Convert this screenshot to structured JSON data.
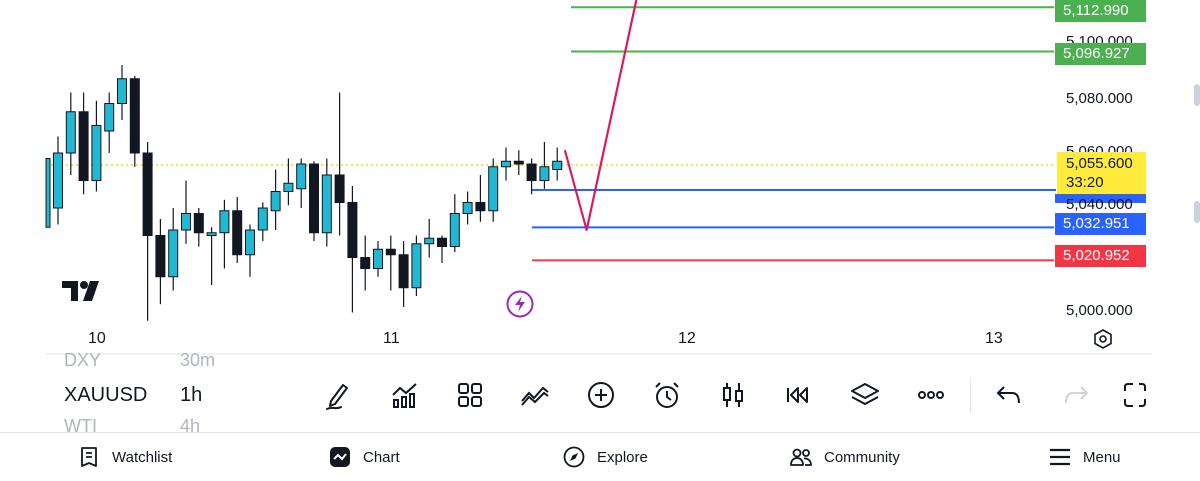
{
  "price_axis": {
    "ticks": [
      "5,100.000",
      "5,080.000",
      "5,060.000",
      "5,040.000",
      "5,000.000"
    ]
  },
  "price_levels": [
    {
      "label": "5,112.990",
      "color": "#4caf50"
    },
    {
      "label": "5,096.927",
      "color": "#4caf50"
    },
    {
      "label": "5,032.951",
      "color": "#2962ff"
    },
    {
      "label": "5,020.952",
      "color": "#f23645"
    }
  ],
  "current_price": {
    "value": "5,055.600",
    "countdown": "33:20",
    "color": "#ffeb3b"
  },
  "time_axis": {
    "labels": [
      "10",
      "11",
      "12",
      "13"
    ]
  },
  "chart_data": {
    "type": "candlestick",
    "symbol": "XAUUSD",
    "interval": "1h",
    "candles": [
      {
        "o": 5040,
        "h": 5066,
        "l": 5034,
        "c": 5060
      },
      {
        "o": 5060,
        "h": 5082,
        "l": 5052,
        "c": 5075
      },
      {
        "o": 5075,
        "h": 5082,
        "l": 5045,
        "c": 5050
      },
      {
        "o": 5050,
        "h": 5079,
        "l": 5046,
        "c": 5070
      },
      {
        "o": 5068,
        "h": 5082,
        "l": 5060,
        "c": 5078
      },
      {
        "o": 5078,
        "h": 5092,
        "l": 5072,
        "c": 5087
      },
      {
        "o": 5087,
        "h": 5088,
        "l": 5055,
        "c": 5060
      },
      {
        "o": 5060,
        "h": 5064,
        "l": 4999,
        "c": 5030
      },
      {
        "o": 5030,
        "h": 5036,
        "l": 5005,
        "c": 5015
      },
      {
        "o": 5015,
        "h": 5040,
        "l": 5010,
        "c": 5032
      },
      {
        "o": 5032,
        "h": 5050,
        "l": 5027,
        "c": 5038
      },
      {
        "o": 5038,
        "h": 5040,
        "l": 5026,
        "c": 5031
      },
      {
        "o": 5030,
        "h": 5033,
        "l": 5012,
        "c": 5031
      },
      {
        "o": 5031,
        "h": 5043,
        "l": 5018,
        "c": 5039
      },
      {
        "o": 5039,
        "h": 5044,
        "l": 5020,
        "c": 5023
      },
      {
        "o": 5023,
        "h": 5034,
        "l": 5015,
        "c": 5032
      },
      {
        "o": 5032,
        "h": 5042,
        "l": 5028,
        "c": 5040
      },
      {
        "o": 5039,
        "h": 5054,
        "l": 5032,
        "c": 5046
      },
      {
        "o": 5046,
        "h": 5058,
        "l": 5041,
        "c": 5049
      },
      {
        "o": 5047,
        "h": 5058,
        "l": 5040,
        "c": 5056
      },
      {
        "o": 5056,
        "h": 5057,
        "l": 5028,
        "c": 5031
      },
      {
        "o": 5031,
        "h": 5058,
        "l": 5026,
        "c": 5052
      },
      {
        "o": 5052,
        "h": 5082,
        "l": 5030,
        "c": 5042
      },
      {
        "o": 5042,
        "h": 5048,
        "l": 5002,
        "c": 5022
      },
      {
        "o": 5022,
        "h": 5030,
        "l": 5010,
        "c": 5018
      },
      {
        "o": 5018,
        "h": 5028,
        "l": 5015,
        "c": 5025
      },
      {
        "o": 5025,
        "h": 5030,
        "l": 5010,
        "c": 5023
      },
      {
        "o": 5023,
        "h": 5028,
        "l": 5004,
        "c": 5011
      },
      {
        "o": 5011,
        "h": 5030,
        "l": 5008,
        "c": 5027
      },
      {
        "o": 5027,
        "h": 5036,
        "l": 5022,
        "c": 5029
      },
      {
        "o": 5029,
        "h": 5030,
        "l": 5020,
        "c": 5026
      },
      {
        "o": 5026,
        "h": 5045,
        "l": 5024,
        "c": 5038
      },
      {
        "o": 5038,
        "h": 5046,
        "l": 5034,
        "c": 5042
      },
      {
        "o": 5042,
        "h": 5052,
        "l": 5035,
        "c": 5039
      },
      {
        "o": 5039,
        "h": 5058,
        "l": 5035,
        "c": 5055
      },
      {
        "o": 5055,
        "h": 5062,
        "l": 5050,
        "c": 5057
      },
      {
        "o": 5057,
        "h": 5061,
        "l": 5052,
        "c": 5056
      },
      {
        "o": 5056,
        "h": 5058,
        "l": 5045,
        "c": 5050
      },
      {
        "o": 5050,
        "h": 5064,
        "l": 5047,
        "c": 5055
      },
      {
        "o": 5054,
        "h": 5062,
        "l": 5050,
        "c": 5057
      }
    ],
    "projection": [
      {
        "from_candle": 39.6,
        "price": 5061
      },
      {
        "from_candle": 41.3,
        "price": 5032
      },
      {
        "from_candle": 45.2,
        "price": 5116
      }
    ]
  },
  "toolbar": {
    "symbols_above": {
      "symbol": "DXY",
      "interval": "30m"
    },
    "active": {
      "symbol": "XAUUSD",
      "interval": "1h"
    },
    "symbols_below": {
      "symbol": "WTI",
      "interval": "4h"
    },
    "icons": [
      "drawing-pen-icon",
      "indicators-icon",
      "templates-icon",
      "compare-icon",
      "add-icon",
      "alert-clock-icon",
      "candle-type-icon",
      "replay-icon",
      "layers-icon",
      "more-icon",
      "undo-icon",
      "redo-icon",
      "fullscreen-icon"
    ]
  },
  "nav": {
    "watchlist": "Watchlist",
    "chart": "Chart",
    "explore": "Explore",
    "community": "Community",
    "menu": "Menu"
  }
}
